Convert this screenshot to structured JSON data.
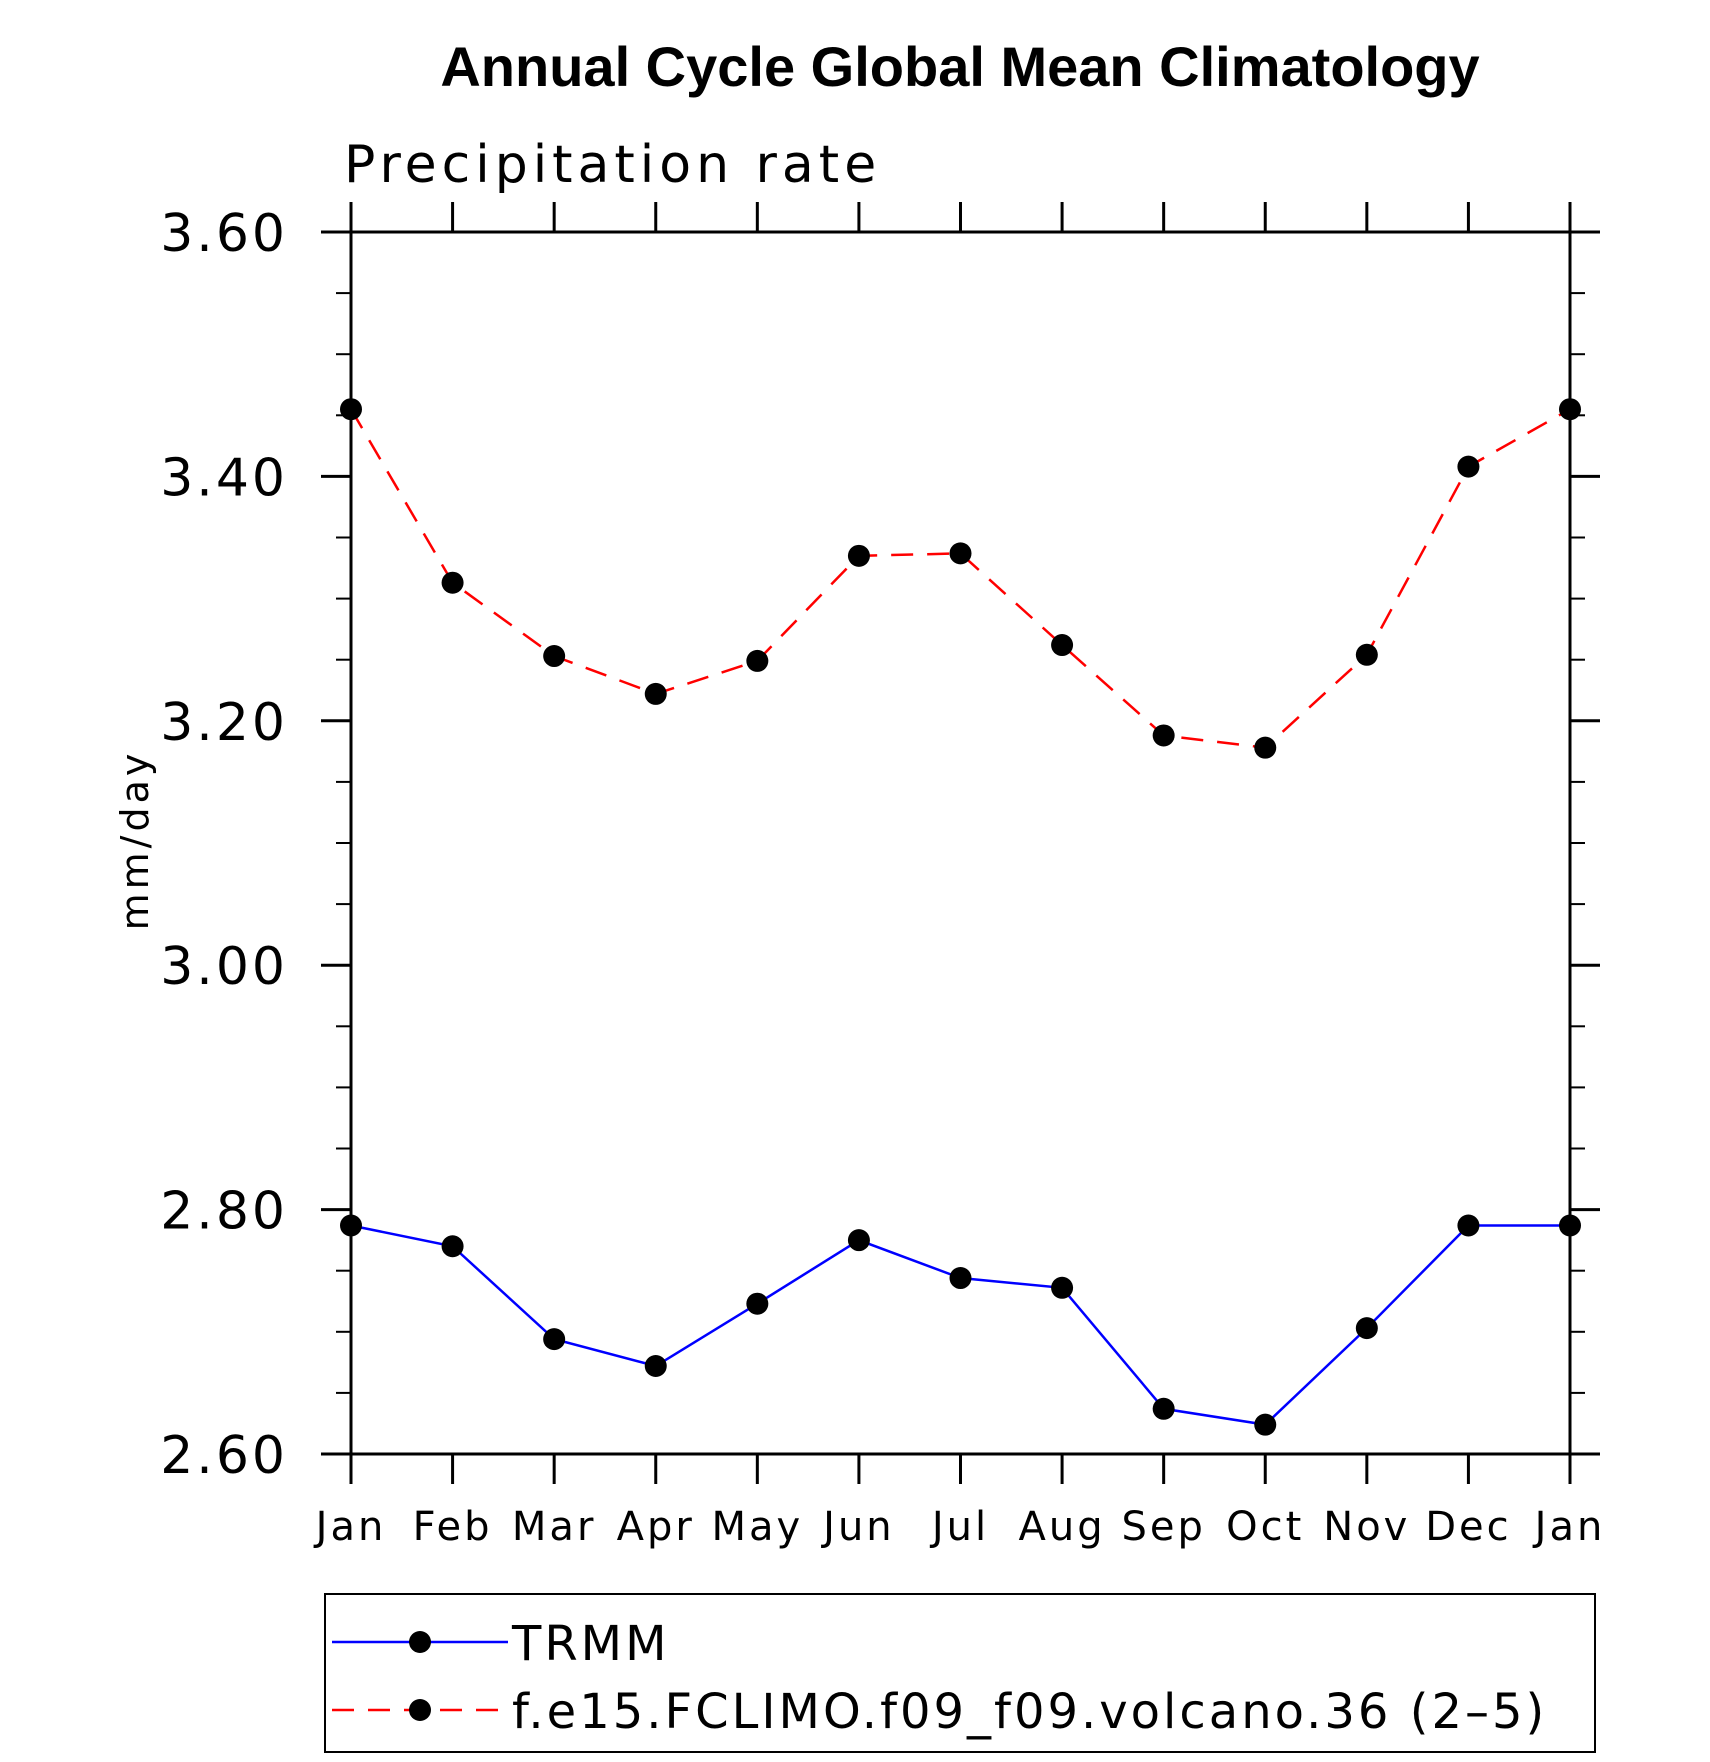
{
  "chart_data": {
    "type": "line",
    "title": "Annual Cycle Global Mean Climatology",
    "subtitle": "Precipitation rate",
    "xlabel": "",
    "ylabel": "mm/day",
    "categories": [
      "Jan",
      "Feb",
      "Mar",
      "Apr",
      "May",
      "Jun",
      "Jul",
      "Aug",
      "Sep",
      "Oct",
      "Nov",
      "Dec",
      "Jan"
    ],
    "ylim": [
      2.6,
      3.6
    ],
    "y_ticks": [
      "3.60",
      "3.40",
      "3.20",
      "3.00",
      "2.80",
      "2.60"
    ],
    "y_tick_values": [
      3.6,
      3.4,
      3.2,
      3.0,
      2.8,
      2.6
    ],
    "grid": false,
    "legend_position": "bottom",
    "series": [
      {
        "name": "TRMM",
        "color": "#0000ff",
        "line_style": "solid",
        "marker": "filled-circle",
        "marker_color": "#000000",
        "values": [
          2.787,
          2.77,
          2.694,
          2.672,
          2.723,
          2.775,
          2.744,
          2.736,
          2.637,
          2.624,
          2.703,
          2.787,
          2.787
        ]
      },
      {
        "name": "f.e15.FCLIMO.f09_f09.volcano.36 (2–5)",
        "color": "#ff0000",
        "line_style": "dashed",
        "marker": "filled-circle",
        "marker_color": "#000000",
        "values": [
          3.455,
          3.313,
          3.253,
          3.222,
          3.249,
          3.335,
          3.337,
          3.262,
          3.188,
          3.178,
          3.254,
          3.408,
          3.455
        ]
      }
    ]
  }
}
